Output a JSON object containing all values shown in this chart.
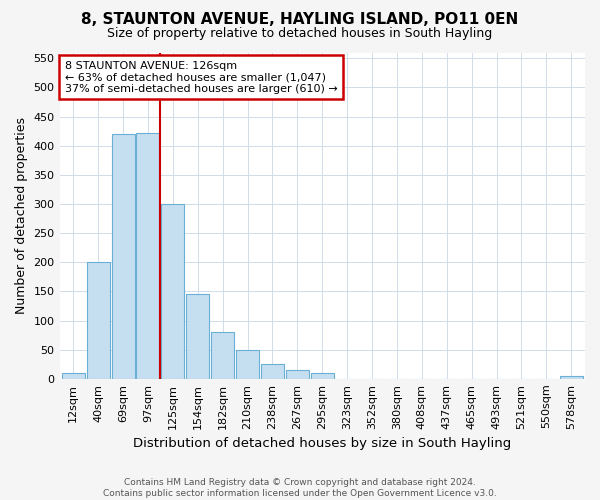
{
  "title": "8, STAUNTON AVENUE, HAYLING ISLAND, PO11 0EN",
  "subtitle": "Size of property relative to detached houses in South Hayling",
  "xlabel": "Distribution of detached houses by size in South Hayling",
  "ylabel": "Number of detached properties",
  "categories": [
    "12sqm",
    "40sqm",
    "69sqm",
    "97sqm",
    "125sqm",
    "154sqm",
    "182sqm",
    "210sqm",
    "238sqm",
    "267sqm",
    "295sqm",
    "323sqm",
    "352sqm",
    "380sqm",
    "408sqm",
    "437sqm",
    "465sqm",
    "493sqm",
    "521sqm",
    "550sqm",
    "578sqm"
  ],
  "values": [
    10,
    200,
    420,
    422,
    300,
    145,
    80,
    50,
    25,
    15,
    10,
    0,
    0,
    0,
    0,
    0,
    0,
    0,
    0,
    0,
    5
  ],
  "bar_color": "#c5dff0",
  "bar_edge_color": "#6aafd6",
  "ylim": [
    0,
    560
  ],
  "yticks": [
    0,
    50,
    100,
    150,
    200,
    250,
    300,
    350,
    400,
    450,
    500,
    550
  ],
  "red_line_bin_index": 4,
  "annotation_line1": "8 STAUNTON AVENUE: 126sqm",
  "annotation_line2": "← 63% of detached houses are smaller (1,047)",
  "annotation_line3": "37% of semi-detached houses are larger (610) →",
  "annotation_box_color": "#ffffff",
  "annotation_box_edge_color": "#cc0000",
  "red_line_color": "#cc0000",
  "footnote_line1": "Contains HM Land Registry data © Crown copyright and database right 2024.",
  "footnote_line2": "Contains public sector information licensed under the Open Government Licence v3.0.",
  "background_color": "#f5f5f5",
  "plot_background_color": "#ffffff",
  "grid_color": "#d0dce8",
  "title_fontsize": 11,
  "subtitle_fontsize": 9,
  "tick_fontsize": 8,
  "ylabel_fontsize": 9,
  "xlabel_fontsize": 9.5
}
